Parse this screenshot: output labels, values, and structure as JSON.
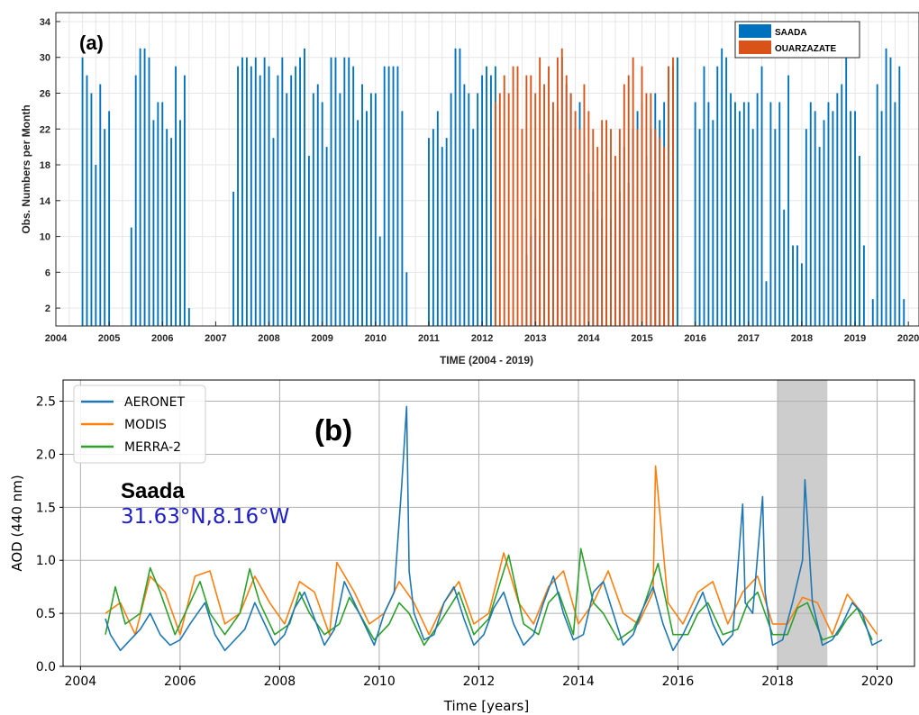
{
  "chart_data": [
    {
      "type": "bar",
      "panel_label": "(a)",
      "xlabel": "TIME (2004 - 2019)",
      "ylabel": "Obs. Numbers per Month",
      "xlim": [
        2004.0,
        2020.2
      ],
      "ylim": [
        0,
        35
      ],
      "x_ticks": [
        "2004",
        "2005",
        "2006",
        "2007",
        "2008",
        "2009",
        "2010",
        "2011",
        "2012",
        "2013",
        "2014",
        "2015",
        "2016",
        "2017",
        "2018",
        "2019",
        "2020"
      ],
      "y_ticks": [
        "2",
        "6",
        "10",
        "14",
        "18",
        "22",
        "26",
        "30",
        "34"
      ],
      "grid": true,
      "legend_position": "top-right",
      "colors": {
        "SAADA": "#0072BD",
        "OUARZAZATE": "#D95319"
      },
      "series": [
        {
          "name": "SAADA",
          "months": [
            "2004-07",
            "2004-08",
            "2004-09",
            "2004-10",
            "2004-11",
            "2004-12",
            "2005-01",
            "2005-02",
            "2005-06",
            "2005-07",
            "2005-08",
            "2005-09",
            "2005-10",
            "2005-11",
            "2005-12",
            "2006-01",
            "2006-02",
            "2006-03",
            "2006-04",
            "2006-05",
            "2006-06",
            "2006-07",
            "2007-05",
            "2007-06",
            "2007-07",
            "2007-08",
            "2007-09",
            "2007-10",
            "2007-11",
            "2007-12",
            "2008-01",
            "2008-02",
            "2008-03",
            "2008-04",
            "2008-05",
            "2008-06",
            "2008-07",
            "2008-08",
            "2008-09",
            "2008-10",
            "2008-11",
            "2008-12",
            "2009-01",
            "2009-02",
            "2009-03",
            "2009-04",
            "2009-05",
            "2009-06",
            "2009-07",
            "2009-08",
            "2009-09",
            "2009-10",
            "2009-11",
            "2009-12",
            "2010-01",
            "2010-02",
            "2010-03",
            "2010-04",
            "2010-05",
            "2010-06",
            "2010-07",
            "2010-08",
            "2010-09",
            "2010-10",
            "2011-01",
            "2011-02",
            "2011-03",
            "2011-04",
            "2011-05",
            "2011-06",
            "2011-07",
            "2011-08",
            "2011-09",
            "2011-10",
            "2011-11",
            "2011-12",
            "2012-01",
            "2012-02",
            "2012-03",
            "2012-04",
            "2012-11",
            "2012-12",
            "2013-01",
            "2013-02",
            "2013-03",
            "2013-04",
            "2013-05",
            "2013-06",
            "2013-07",
            "2013-08",
            "2013-09",
            "2013-10",
            "2013-11",
            "2013-12",
            "2014-01",
            "2014-02",
            "2014-03",
            "2014-04",
            "2014-05",
            "2014-06",
            "2014-07",
            "2014-08",
            "2014-09",
            "2014-10",
            "2014-11",
            "2014-12",
            "2015-01",
            "2015-02",
            "2015-03",
            "2015-04",
            "2015-05",
            "2015-06",
            "2015-07",
            "2015-08",
            "2015-09",
            "2015-10",
            "2016-01",
            "2016-02",
            "2016-03",
            "2016-04",
            "2016-05",
            "2016-06",
            "2016-07",
            "2016-08",
            "2016-09",
            "2016-10",
            "2016-11",
            "2016-12",
            "2017-01",
            "2017-02",
            "2017-03",
            "2017-04",
            "2017-05",
            "2017-06",
            "2017-07",
            "2017-08",
            "2017-09",
            "2017-10",
            "2017-11",
            "2017-12",
            "2018-01",
            "2018-02",
            "2018-03",
            "2018-04",
            "2018-05",
            "2018-06",
            "2018-07",
            "2018-08",
            "2018-09",
            "2018-10",
            "2018-11",
            "2018-12",
            "2019-01",
            "2019-02",
            "2019-03",
            "2019-04",
            "2019-05",
            "2019-06",
            "2019-07",
            "2019-08",
            "2019-09",
            "2019-10",
            "2019-11",
            "2019-12"
          ],
          "values": [
            30,
            28,
            26,
            18,
            27,
            22,
            24,
            0,
            11,
            28,
            31,
            31,
            30,
            23,
            25,
            25,
            22,
            21,
            29,
            23,
            28,
            2,
            15,
            29,
            30,
            30,
            29,
            30,
            28,
            30,
            29,
            21,
            28,
            30,
            26,
            28,
            29,
            30,
            31,
            19,
            26,
            27,
            25,
            20,
            30,
            30,
            26,
            30,
            30,
            29,
            23,
            27,
            24,
            26,
            26,
            10,
            29,
            29,
            29,
            29,
            24,
            6,
            0,
            0,
            21,
            22,
            24,
            20,
            21,
            26,
            31,
            31,
            27,
            26,
            22,
            26,
            28,
            29,
            28,
            29,
            8,
            10,
            12,
            10,
            14,
            20,
            21,
            24,
            30,
            27,
            26,
            22,
            25,
            21,
            17,
            15,
            13,
            12,
            10,
            12,
            14,
            15,
            20,
            16,
            22,
            24,
            25,
            19,
            22,
            26,
            23,
            25,
            29,
            29,
            30,
            0,
            25,
            22,
            29,
            25,
            23,
            29,
            31,
            30,
            26,
            25,
            24,
            25,
            25,
            22,
            26,
            29,
            5,
            25,
            22,
            25,
            13,
            28,
            9,
            9,
            7,
            22,
            25,
            24,
            20,
            23,
            25,
            24,
            26,
            27,
            30,
            24,
            24,
            19,
            9,
            0,
            3,
            27,
            24,
            31,
            30,
            25,
            29,
            3
          ]
        },
        {
          "name": "OUARZAZATE",
          "months": [
            "2012-04",
            "2012-05",
            "2012-06",
            "2012-07",
            "2012-08",
            "2012-09",
            "2012-10",
            "2012-11",
            "2012-12",
            "2013-01",
            "2013-02",
            "2013-03",
            "2013-04",
            "2013-05",
            "2013-06",
            "2013-07",
            "2013-08",
            "2013-09",
            "2013-10",
            "2013-11",
            "2013-12",
            "2014-01",
            "2014-02",
            "2014-03",
            "2014-04",
            "2014-05",
            "2014-06",
            "2014-07",
            "2014-08",
            "2014-09",
            "2014-10",
            "2014-11",
            "2014-12",
            "2015-01",
            "2015-02",
            "2015-03",
            "2015-04",
            "2015-05",
            "2015-06",
            "2015-07",
            "2015-08"
          ],
          "values": [
            25,
            26,
            28,
            26,
            29,
            29,
            22,
            28,
            28,
            26,
            30,
            27,
            29,
            25,
            30,
            31,
            28,
            26,
            24,
            22,
            27,
            24,
            22,
            20,
            23,
            23,
            22,
            19,
            22,
            27,
            28,
            30,
            22,
            29,
            26,
            26,
            22,
            21,
            20,
            29,
            30
          ]
        }
      ]
    },
    {
      "type": "line",
      "panel_label": "(b)",
      "site_name": "Saada",
      "coordinates": "31.63°N,8.16°W",
      "xlabel": "Time [years]",
      "ylabel": "AOD (440 nm)",
      "xlim": [
        2003.65,
        2020.75
      ],
      "ylim": [
        0,
        2.7
      ],
      "x_ticks": [
        "2004",
        "2006",
        "2008",
        "2010",
        "2012",
        "2014",
        "2016",
        "2018",
        "2020"
      ],
      "y_ticks": [
        "0.0",
        "0.5",
        "1.0",
        "1.5",
        "2.0",
        "2.5"
      ],
      "grid": true,
      "legend_position": "top-left",
      "shaded_region": [
        2018.0,
        2019.0
      ],
      "colors": {
        "AERONET": "#1f77b4",
        "MODIS": "#ff7f0e",
        "MERRA-2": "#2ca02c",
        "shade": "#c8c8c8"
      },
      "series": [
        {
          "name": "AERONET",
          "x": [
            2004.5,
            2004.6,
            2004.8,
            2005.0,
            2005.2,
            2005.4,
            2005.6,
            2005.8,
            2006.0,
            2006.2,
            2006.5,
            2006.7,
            2006.9,
            2007.3,
            2007.5,
            2007.7,
            2007.9,
            2008.1,
            2008.3,
            2008.5,
            2008.7,
            2008.9,
            2009.1,
            2009.3,
            2009.5,
            2009.7,
            2009.9,
            2010.1,
            2010.3,
            2010.45,
            2010.55,
            2010.6,
            2010.7,
            2010.9,
            2011.1,
            2011.3,
            2011.5,
            2011.7,
            2011.9,
            2012.1,
            2012.3,
            2012.5,
            2012.7,
            2012.9,
            2013.1,
            2013.3,
            2013.5,
            2013.7,
            2013.9,
            2014.1,
            2014.3,
            2014.5,
            2014.7,
            2014.9,
            2015.1,
            2015.3,
            2015.5,
            2015.7,
            2015.9,
            2016.1,
            2016.3,
            2016.5,
            2016.7,
            2016.9,
            2017.1,
            2017.3,
            2017.35,
            2017.5,
            2017.7,
            2017.75,
            2017.9,
            2018.1,
            2018.3,
            2018.5,
            2018.55,
            2018.7,
            2018.9,
            2019.1,
            2019.3,
            2019.5,
            2019.7,
            2019.9,
            2020.1
          ],
          "y": [
            0.45,
            0.3,
            0.15,
            0.25,
            0.35,
            0.5,
            0.3,
            0.2,
            0.25,
            0.4,
            0.6,
            0.3,
            0.15,
            0.35,
            0.6,
            0.4,
            0.2,
            0.3,
            0.55,
            0.7,
            0.45,
            0.2,
            0.35,
            0.8,
            0.6,
            0.4,
            0.2,
            0.5,
            0.7,
            1.7,
            2.45,
            0.9,
            0.5,
            0.25,
            0.3,
            0.6,
            0.75,
            0.45,
            0.2,
            0.3,
            0.55,
            0.7,
            0.4,
            0.2,
            0.3,
            0.6,
            0.85,
            0.5,
            0.25,
            0.3,
            0.7,
            0.8,
            0.5,
            0.2,
            0.3,
            0.55,
            0.75,
            0.4,
            0.15,
            0.3,
            0.5,
            0.7,
            0.4,
            0.2,
            0.3,
            1.53,
            0.6,
            0.5,
            1.6,
            0.7,
            0.2,
            0.25,
            0.6,
            1.0,
            1.76,
            0.6,
            0.2,
            0.25,
            0.4,
            0.6,
            0.5,
            0.2,
            0.25
          ]
        },
        {
          "name": "MODIS",
          "x": [
            2004.5,
            2004.8,
            2005.1,
            2005.4,
            2005.7,
            2006.0,
            2006.3,
            2006.6,
            2006.9,
            2007.2,
            2007.5,
            2007.8,
            2008.1,
            2008.4,
            2008.7,
            2009.0,
            2009.15,
            2009.5,
            2009.8,
            2010.1,
            2010.4,
            2010.7,
            2011.0,
            2011.3,
            2011.6,
            2011.9,
            2012.2,
            2012.5,
            2012.8,
            2013.1,
            2013.4,
            2013.7,
            2014.0,
            2014.3,
            2014.6,
            2014.9,
            2015.2,
            2015.5,
            2015.55,
            2015.8,
            2016.1,
            2016.4,
            2016.7,
            2017.0,
            2017.3,
            2017.6,
            2017.9,
            2018.2,
            2018.5,
            2018.8,
            2019.1,
            2019.4,
            2019.7,
            2020.0
          ],
          "y": [
            0.5,
            0.6,
            0.3,
            0.85,
            0.7,
            0.3,
            0.85,
            0.9,
            0.4,
            0.5,
            0.85,
            0.6,
            0.4,
            0.8,
            0.7,
            0.3,
            0.98,
            0.7,
            0.4,
            0.5,
            0.8,
            0.6,
            0.3,
            0.6,
            0.8,
            0.4,
            0.5,
            1.07,
            0.6,
            0.4,
            0.75,
            0.9,
            0.4,
            0.6,
            0.9,
            0.5,
            0.4,
            0.7,
            1.89,
            0.6,
            0.4,
            0.7,
            0.8,
            0.4,
            0.7,
            0.85,
            0.4,
            0.4,
            0.65,
            0.6,
            0.3,
            0.68,
            0.5,
            0.3
          ]
        },
        {
          "name": "MERRA-2",
          "x": [
            2004.5,
            2004.7,
            2004.9,
            2005.2,
            2005.4,
            2005.6,
            2005.9,
            2006.2,
            2006.4,
            2006.6,
            2006.9,
            2007.2,
            2007.4,
            2007.6,
            2007.9,
            2008.2,
            2008.4,
            2008.6,
            2008.9,
            2009.2,
            2009.4,
            2009.6,
            2009.9,
            2010.2,
            2010.4,
            2010.6,
            2010.9,
            2011.2,
            2011.4,
            2011.6,
            2011.9,
            2012.2,
            2012.4,
            2012.6,
            2012.9,
            2013.2,
            2013.4,
            2013.6,
            2013.9,
            2014.05,
            2014.3,
            2014.5,
            2014.8,
            2015.1,
            2015.3,
            2015.6,
            2015.9,
            2016.2,
            2016.4,
            2016.6,
            2016.9,
            2017.2,
            2017.4,
            2017.6,
            2017.9,
            2018.2,
            2018.4,
            2018.6,
            2018.9,
            2019.2,
            2019.4,
            2019.6,
            2019.9
          ],
          "y": [
            0.3,
            0.75,
            0.4,
            0.5,
            0.93,
            0.7,
            0.3,
            0.6,
            0.8,
            0.5,
            0.3,
            0.5,
            0.92,
            0.6,
            0.3,
            0.4,
            0.7,
            0.5,
            0.3,
            0.4,
            0.65,
            0.5,
            0.25,
            0.4,
            0.6,
            0.5,
            0.2,
            0.4,
            0.55,
            0.7,
            0.3,
            0.45,
            0.75,
            1.05,
            0.4,
            0.3,
            0.6,
            0.7,
            0.3,
            1.11,
            0.6,
            0.5,
            0.25,
            0.35,
            0.55,
            0.97,
            0.3,
            0.3,
            0.5,
            0.6,
            0.3,
            0.35,
            0.6,
            0.7,
            0.3,
            0.3,
            0.55,
            0.6,
            0.25,
            0.3,
            0.45,
            0.55,
            0.25
          ]
        }
      ]
    }
  ]
}
